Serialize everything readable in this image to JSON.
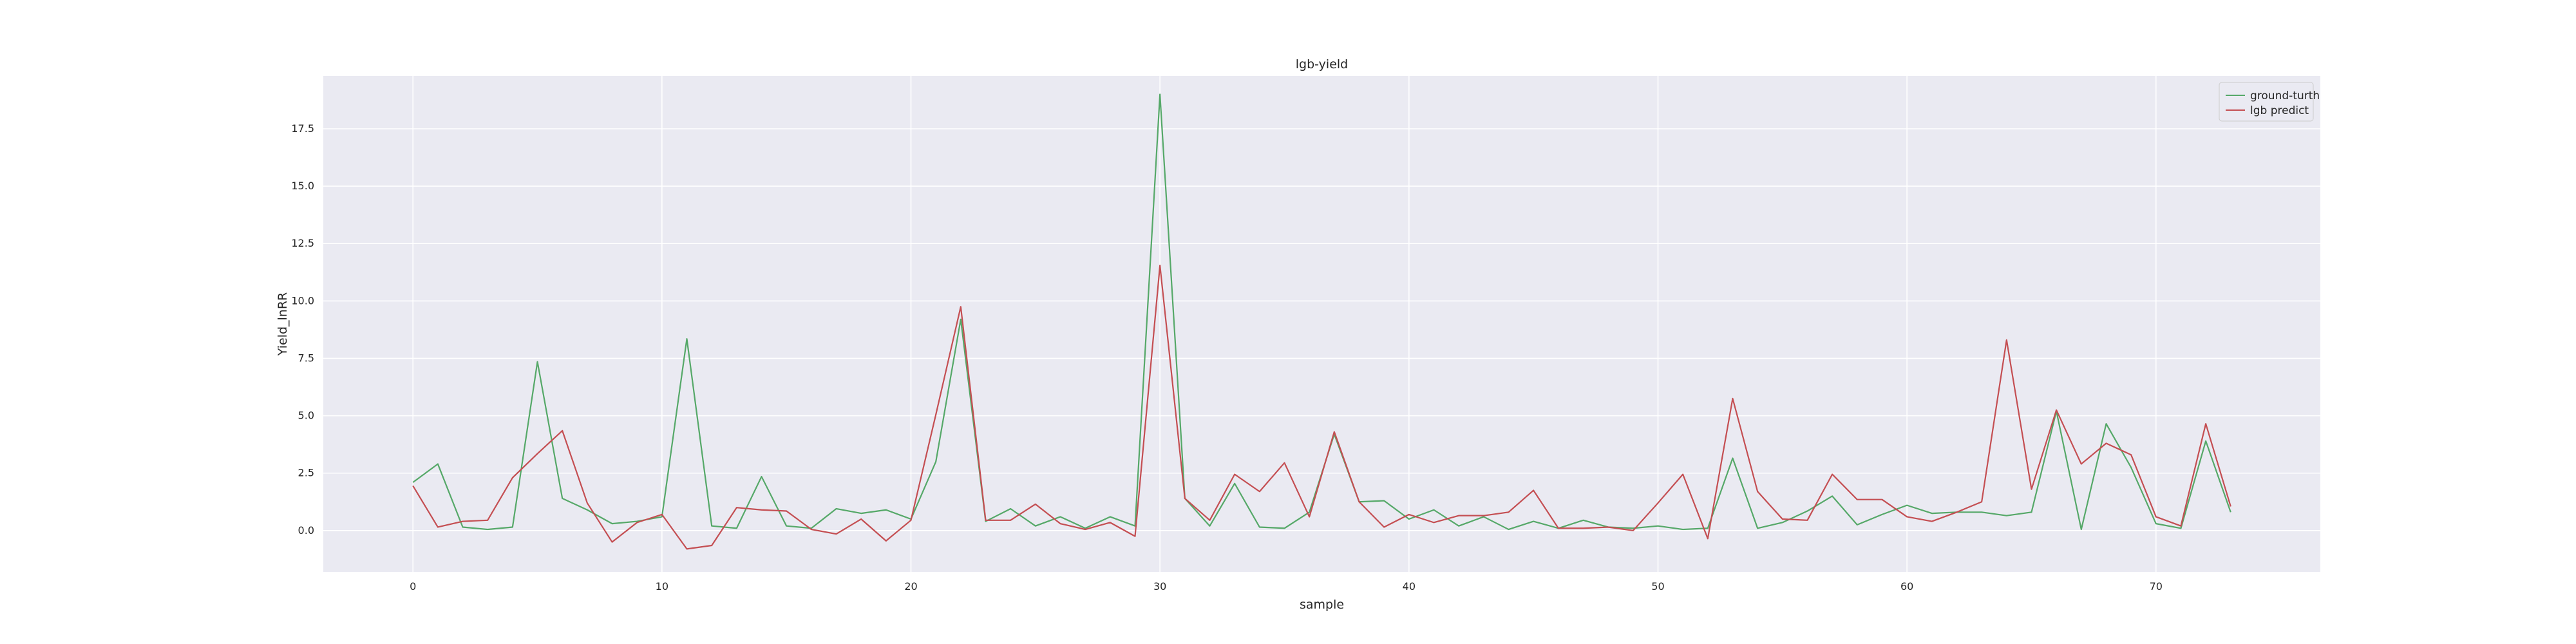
{
  "chart_data": {
    "type": "line",
    "title": "lgb-yield",
    "xlabel": "sample",
    "ylabel": "Yield_lnRR",
    "xlim": [
      -3.6,
      76.6
    ],
    "ylim": [
      -1.8,
      19.8
    ],
    "xticks": [
      0,
      10,
      20,
      30,
      40,
      50,
      60,
      70
    ],
    "yticks": [
      0.0,
      2.5,
      5.0,
      7.5,
      10.0,
      12.5,
      15.0,
      17.5
    ],
    "ytick_labels": [
      "0.0",
      "2.5",
      "5.0",
      "7.5",
      "10.0",
      "12.5",
      "15.0",
      "17.5"
    ],
    "grid": true,
    "legend_position": "top-right",
    "x": [
      0,
      1,
      2,
      3,
      4,
      5,
      6,
      7,
      8,
      9,
      10,
      11,
      12,
      13,
      14,
      15,
      16,
      17,
      18,
      19,
      20,
      21,
      22,
      23,
      24,
      25,
      26,
      27,
      28,
      29,
      30,
      31,
      32,
      33,
      34,
      35,
      36,
      37,
      38,
      39,
      40,
      41,
      42,
      43,
      44,
      45,
      46,
      47,
      48,
      49,
      50,
      51,
      52,
      53,
      54,
      55,
      56,
      57,
      58,
      59,
      60,
      61,
      62,
      63,
      64,
      65,
      66,
      67,
      68,
      69,
      70,
      71,
      72,
      73
    ],
    "series": [
      {
        "name": "ground-turth",
        "color": "#55a868",
        "values": [
          2.1,
          2.9,
          0.15,
          0.05,
          0.15,
          7.35,
          1.4,
          0.9,
          0.3,
          0.4,
          0.6,
          8.35,
          0.2,
          0.1,
          2.35,
          0.2,
          0.1,
          0.95,
          0.75,
          0.9,
          0.5,
          3.0,
          9.2,
          0.4,
          0.95,
          0.2,
          0.6,
          0.1,
          0.6,
          0.2,
          19.0,
          1.4,
          0.2,
          2.05,
          0.15,
          0.1,
          0.8,
          4.2,
          1.25,
          1.3,
          0.5,
          0.9,
          0.2,
          0.6,
          0.05,
          0.4,
          0.1,
          0.45,
          0.15,
          0.1,
          0.2,
          0.05,
          0.1,
          3.15,
          0.1,
          0.35,
          0.85,
          1.5,
          0.25,
          0.7,
          1.1,
          0.75,
          0.8,
          0.8,
          0.65,
          0.8,
          5.2,
          0.05,
          4.65,
          2.75,
          0.3,
          0.1,
          3.9,
          0.8
        ]
      },
      {
        "name": "lgb predict",
        "color": "#c44e52",
        "values": [
          1.95,
          0.15,
          0.4,
          0.45,
          2.3,
          3.35,
          4.35,
          1.2,
          -0.5,
          0.35,
          0.7,
          -0.8,
          -0.65,
          1.0,
          0.9,
          0.85,
          0.05,
          -0.15,
          0.5,
          -0.45,
          0.45,
          5.05,
          9.75,
          0.45,
          0.45,
          1.15,
          0.3,
          0.05,
          0.35,
          -0.25,
          11.55,
          1.4,
          0.45,
          2.45,
          1.7,
          2.95,
          0.6,
          4.3,
          1.25,
          0.15,
          0.7,
          0.35,
          0.65,
          0.65,
          0.8,
          1.75,
          0.1,
          0.1,
          0.15,
          0.0,
          1.2,
          2.45,
          -0.35,
          5.75,
          1.7,
          0.5,
          0.45,
          2.45,
          1.35,
          1.35,
          0.6,
          0.4,
          0.8,
          1.25,
          8.3,
          1.8,
          5.25,
          2.9,
          3.8,
          3.3,
          0.6,
          0.2,
          4.65,
          1.05
        ]
      }
    ]
  }
}
